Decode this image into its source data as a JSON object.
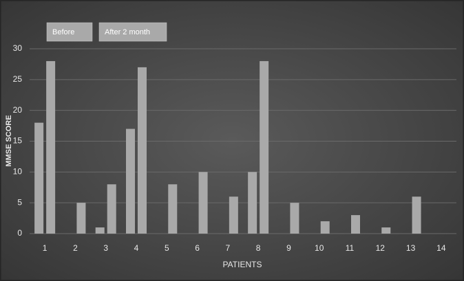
{
  "chart_data": {
    "type": "bar",
    "x_label": "PATIENTS",
    "y_label": "MMSE SCORE",
    "categories": [
      "1",
      "2",
      "3",
      "4",
      "5",
      "6",
      "7",
      "8",
      "9",
      "10",
      "11",
      "12",
      "13",
      "14"
    ],
    "series": [
      {
        "name": "Before",
        "color": "#a9a9a9",
        "values": [
          18,
          0,
          1,
          17,
          0,
          0,
          0,
          10,
          0,
          0,
          0,
          0,
          0,
          0
        ]
      },
      {
        "name": "After 2 month",
        "color": "#a9a9a9",
        "values": [
          28,
          5,
          8,
          27,
          8,
          10,
          6,
          28,
          5,
          2,
          3,
          1,
          6,
          0
        ]
      }
    ],
    "ylim": [
      0,
      30
    ],
    "yticks": [
      0,
      5,
      10,
      15,
      20,
      25,
      30
    ],
    "grid": true,
    "legend": "top-left"
  }
}
